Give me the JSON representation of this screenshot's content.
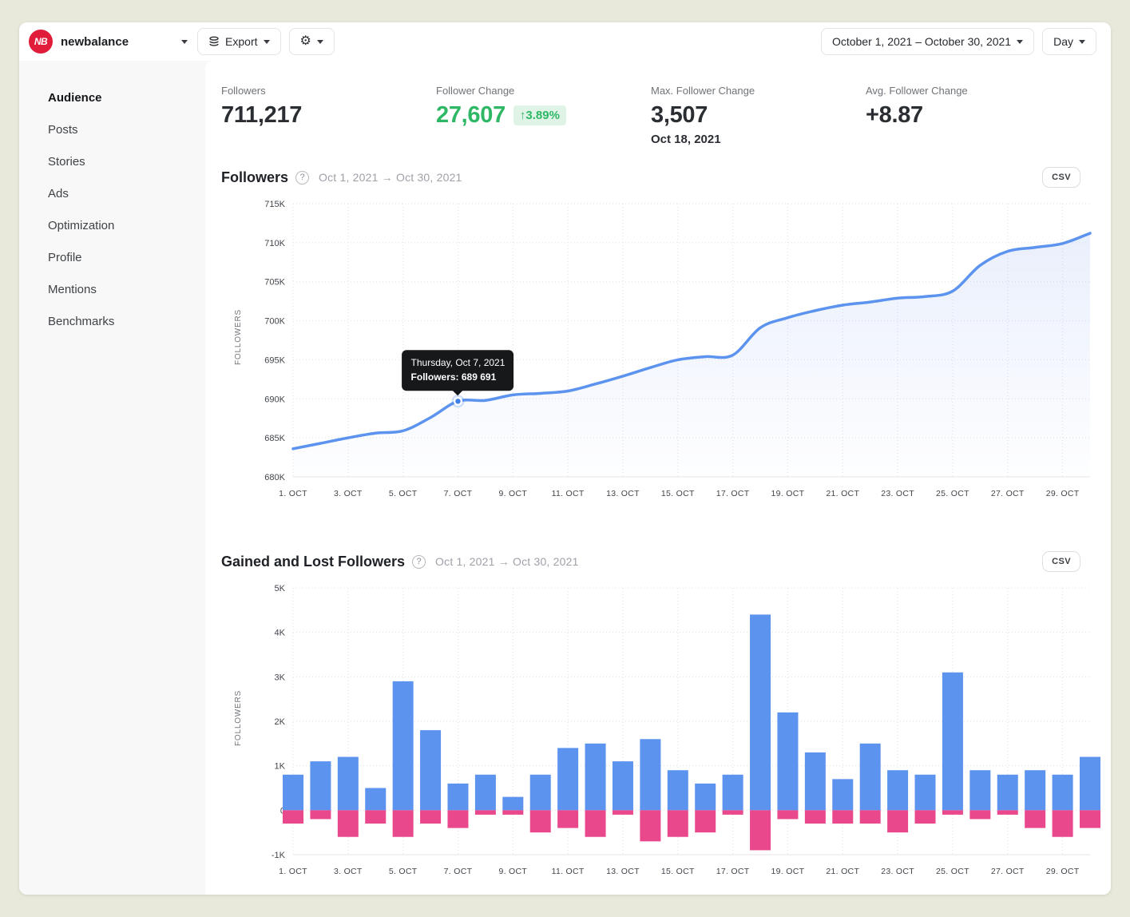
{
  "topbar": {
    "logo_text": "NB",
    "account": "newbalance",
    "export_label": "Export",
    "date_range_label": "October 1, 2021 – October 30, 2021",
    "granularity_label": "Day"
  },
  "sidebar": {
    "items": [
      {
        "label": "Audience",
        "active": true
      },
      {
        "label": "Posts",
        "active": false
      },
      {
        "label": "Stories",
        "active": false
      },
      {
        "label": "Ads",
        "active": false
      },
      {
        "label": "Optimization",
        "active": false
      },
      {
        "label": "Profile",
        "active": false
      },
      {
        "label": "Mentions",
        "active": false
      },
      {
        "label": "Benchmarks",
        "active": false
      }
    ]
  },
  "stats": [
    {
      "label": "Followers",
      "value": "711,217"
    },
    {
      "label": "Follower Change",
      "value": "27,607",
      "badge": "↑3.89%"
    },
    {
      "label": "Max. Follower Change",
      "value": "3,507",
      "date": "Oct 18, 2021"
    },
    {
      "label": "Avg. Follower Change",
      "value": "+8.87"
    }
  ],
  "sections": {
    "followers": {
      "title": "Followers",
      "date_range": "Oct 1, 2021 → Oct 30, 2021",
      "csv_label": "CSV"
    },
    "gained_lost": {
      "title": "Gained and Lost Followers",
      "date_range": "Oct 1, 2021 → Oct 30, 2021",
      "csv_label": "CSV"
    }
  },
  "tooltip": {
    "line1": "Thursday, Oct 7, 2021",
    "line2": "Followers: 689 691"
  },
  "colors": {
    "line_blue": "#5b93ef",
    "bar_blue": "#5b93ef",
    "bar_pink": "#e9498c",
    "green": "#2eb865",
    "logo_red": "#e11b3a"
  },
  "chart_data": [
    {
      "type": "line",
      "title": "Followers",
      "ylabel": "FOLLOWERS",
      "x_labels": [
        "1. OCT",
        "3. OCT",
        "5. OCT",
        "7. OCT",
        "9. OCT",
        "11. OCT",
        "13. OCT",
        "15. OCT",
        "17. OCT",
        "19. OCT",
        "21. OCT",
        "23. OCT",
        "25. OCT",
        "27. OCT",
        "29. OCT"
      ],
      "days": [
        1,
        2,
        3,
        4,
        5,
        6,
        7,
        8,
        9,
        10,
        11,
        12,
        13,
        14,
        15,
        16,
        17,
        18,
        19,
        20,
        21,
        22,
        23,
        24,
        25,
        26,
        27,
        28,
        29,
        30
      ],
      "values": [
        683600,
        684300,
        685000,
        685600,
        685900,
        687600,
        689691,
        689800,
        690500,
        690700,
        691000,
        691900,
        692900,
        694000,
        695000,
        695400,
        695600,
        699100,
        700400,
        701300,
        702000,
        702400,
        702900,
        703100,
        703800,
        707100,
        708900,
        709400,
        709900,
        711217
      ],
      "ylim": [
        680000,
        715000
      ],
      "ytick_step": 5000,
      "grid": true,
      "highlight": {
        "index": 6,
        "value": 689691
      }
    },
    {
      "type": "bar",
      "title": "Gained and Lost Followers",
      "ylabel": "FOLLOWERS",
      "x_labels": [
        "1. OCT",
        "3. OCT",
        "5. OCT",
        "7. OCT",
        "9. OCT",
        "11. OCT",
        "13. OCT",
        "15. OCT",
        "17. OCT",
        "19. OCT",
        "21. OCT",
        "23. OCT",
        "25. OCT",
        "27. OCT",
        "29. OCT"
      ],
      "days": [
        1,
        2,
        3,
        4,
        5,
        6,
        7,
        8,
        9,
        10,
        11,
        12,
        13,
        14,
        15,
        16,
        17,
        18,
        19,
        20,
        21,
        22,
        23,
        24,
        25,
        26,
        27,
        28,
        29,
        30
      ],
      "series": [
        {
          "name": "Gained",
          "color": "#5b93ef",
          "values": [
            800,
            1100,
            1200,
            500,
            2900,
            1800,
            600,
            800,
            300,
            800,
            1400,
            1500,
            1100,
            1600,
            900,
            600,
            800,
            4400,
            2200,
            1300,
            700,
            1500,
            900,
            800,
            3100,
            900,
            800,
            900,
            800,
            1200
          ]
        },
        {
          "name": "Lost",
          "color": "#e9498c",
          "values": [
            -300,
            -200,
            -600,
            -300,
            -600,
            -300,
            -400,
            -100,
            -100,
            -500,
            -400,
            -600,
            -100,
            -700,
            -600,
            -500,
            -100,
            -900,
            -200,
            -300,
            -300,
            -300,
            -500,
            -300,
            -100,
            -200,
            -100,
            -400,
            -600,
            -400
          ]
        }
      ],
      "ylim": [
        -1000,
        5000
      ],
      "ytick_step": 1000,
      "grid": true
    }
  ]
}
